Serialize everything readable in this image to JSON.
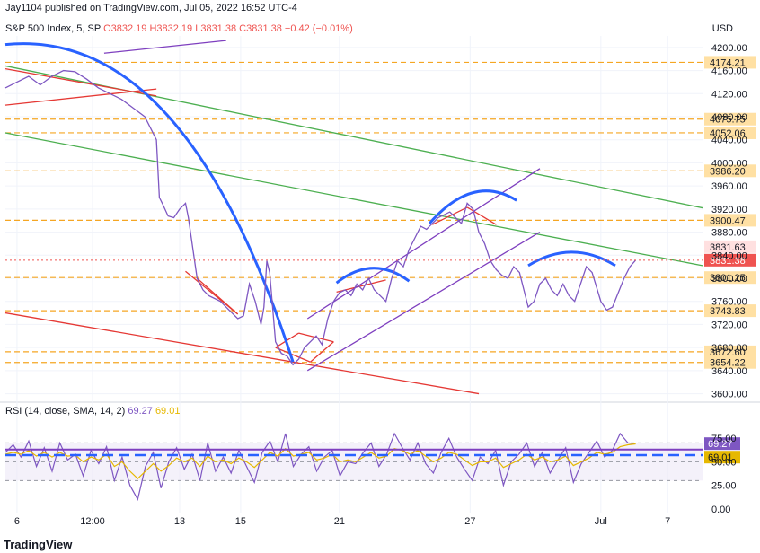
{
  "header": {
    "publisher": "Jay1104 published on TradingView.com, Jul 05, 2022 16:52 UTC-4",
    "symbol": "S&P 500 Index, 5, SP",
    "ohlc": "O3832.19  H3832.19  L3831.38  C3831.38  −0.42 (−0.01%)",
    "currency": "USD"
  },
  "brand": "TradingView",
  "colors": {
    "price_line": "#7e57c2",
    "level_line": "#f5a623",
    "green_channel": "#4caf50",
    "red_channel": "#e53935",
    "purple_channel": "#7e3fbf",
    "blue_curve": "#2962ff",
    "rsi_line": "#7e57c2",
    "rsi_sma": "#e6b800",
    "current_price_bg": "#ef5350"
  },
  "chart_data": [
    {
      "type": "line",
      "title": "S&P 500 Index, 5, SP",
      "ylabel": "USD",
      "ylim": [
        3590,
        4220
      ],
      "y_ticks": [
        3600,
        3640,
        3680,
        3720,
        3760,
        3800,
        3840,
        3880,
        3920,
        3960,
        4000,
        4040,
        4080,
        4120,
        4160,
        4200
      ],
      "x_tick_labels": [
        "6",
        "12:00",
        "13",
        "15",
        "21",
        "27",
        "Jul",
        "7"
      ],
      "grid": true,
      "horizontal_levels": [
        4174.21,
        4075.75,
        4052.06,
        3986.2,
        3900.47,
        3801.25,
        3743.83,
        3672.6,
        3654.22
      ],
      "level_labels": [
        "4174.21",
        "4075.75",
        "4052.06",
        "3986.20",
        "3900.47",
        "3801.25",
        "3743.83",
        "3672.60",
        "3654.22"
      ],
      "current_price": 3831.38,
      "current_price_label": "3831.38",
      "last_close_label": "3831.63",
      "price_path": [
        [
          0,
          4130
        ],
        [
          4,
          4140
        ],
        [
          8,
          4150
        ],
        [
          12,
          4135
        ],
        [
          16,
          4150
        ],
        [
          20,
          4160
        ],
        [
          24,
          4158
        ],
        [
          28,
          4145
        ],
        [
          32,
          4130
        ],
        [
          36,
          4120
        ],
        [
          40,
          4110
        ],
        [
          44,
          4095
        ],
        [
          48,
          4080
        ],
        [
          50,
          4060
        ],
        [
          52,
          4040
        ],
        [
          53,
          3940
        ],
        [
          54,
          3930
        ],
        [
          56,
          3908
        ],
        [
          58,
          3905
        ],
        [
          60,
          3920
        ],
        [
          62,
          3930
        ],
        [
          63,
          3905
        ],
        [
          66,
          3800
        ],
        [
          68,
          3780
        ],
        [
          70,
          3770
        ],
        [
          72,
          3765
        ],
        [
          74,
          3760
        ],
        [
          76,
          3750
        ],
        [
          78,
          3740
        ],
        [
          80,
          3730
        ],
        [
          82,
          3735
        ],
        [
          84,
          3790
        ],
        [
          86,
          3760
        ],
        [
          88,
          3720
        ],
        [
          89,
          3750
        ],
        [
          90,
          3830
        ],
        [
          91,
          3810
        ],
        [
          93,
          3690
        ],
        [
          95,
          3670
        ],
        [
          97,
          3665
        ],
        [
          99,
          3650
        ],
        [
          101,
          3660
        ],
        [
          103,
          3680
        ],
        [
          105,
          3690
        ],
        [
          107,
          3700
        ],
        [
          109,
          3685
        ],
        [
          111,
          3730
        ],
        [
          113,
          3760
        ],
        [
          115,
          3775
        ],
        [
          117,
          3780
        ],
        [
          119,
          3770
        ],
        [
          121,
          3790
        ],
        [
          123,
          3780
        ],
        [
          125,
          3800
        ],
        [
          127,
          3780
        ],
        [
          129,
          3770
        ],
        [
          131,
          3760
        ],
        [
          133,
          3800
        ],
        [
          135,
          3830
        ],
        [
          137,
          3820
        ],
        [
          139,
          3850
        ],
        [
          141,
          3870
        ],
        [
          143,
          3890
        ],
        [
          145,
          3885
        ],
        [
          147,
          3895
        ],
        [
          149,
          3905
        ],
        [
          151,
          3910
        ],
        [
          153,
          3915
        ],
        [
          155,
          3905
        ],
        [
          157,
          3895
        ],
        [
          159,
          3930
        ],
        [
          161,
          3920
        ],
        [
          163,
          3880
        ],
        [
          165,
          3860
        ],
        [
          167,
          3830
        ],
        [
          169,
          3815
        ],
        [
          171,
          3805
        ],
        [
          173,
          3800
        ],
        [
          175,
          3820
        ],
        [
          177,
          3810
        ],
        [
          180,
          3750
        ],
        [
          182,
          3760
        ],
        [
          184,
          3790
        ],
        [
          186,
          3800
        ],
        [
          188,
          3780
        ],
        [
          190,
          3770
        ],
        [
          192,
          3790
        ],
        [
          194,
          3770
        ],
        [
          196,
          3760
        ],
        [
          198,
          3790
        ],
        [
          200,
          3820
        ],
        [
          202,
          3810
        ],
        [
          205,
          3760
        ],
        [
          207,
          3745
        ],
        [
          209,
          3750
        ],
        [
          211,
          3775
        ],
        [
          213,
          3800
        ],
        [
          215,
          3820
        ],
        [
          217,
          3831.38
        ]
      ],
      "trendlines": [
        {
          "color": "green",
          "from": [
            0,
            4168
          ],
          "to": [
            240,
            3922
          ]
        },
        {
          "color": "green",
          "from": [
            0,
            4052
          ],
          "to": [
            240,
            3822
          ]
        },
        {
          "color": "red",
          "from": [
            0,
            4163
          ],
          "to": [
            52,
            4116
          ]
        },
        {
          "color": "red",
          "from": [
            0,
            4100
          ],
          "to": [
            52,
            4128
          ]
        },
        {
          "color": "red",
          "from": [
            0,
            3740
          ],
          "to": [
            163,
            3600
          ]
        },
        {
          "color": "red",
          "from": [
            62,
            3812
          ],
          "to": [
            80,
            3738
          ]
        },
        {
          "color": "red",
          "from": [
            66,
            3800
          ],
          "to": [
            80,
            3738
          ]
        },
        {
          "color": "red",
          "from": [
            93,
            3680
          ],
          "to": [
            101,
            3705
          ]
        },
        {
          "color": "red",
          "from": [
            101,
            3705
          ],
          "to": [
            113,
            3690
          ]
        },
        {
          "color": "red",
          "from": [
            113,
            3690
          ],
          "to": [
            105,
            3655
          ]
        },
        {
          "color": "red",
          "from": [
            93,
            3680
          ],
          "to": [
            105,
            3655
          ]
        },
        {
          "color": "red",
          "from": [
            114,
            3776
          ],
          "to": [
            131,
            3797
          ]
        },
        {
          "color": "red",
          "from": [
            147,
            3893
          ],
          "to": [
            159,
            3923
          ]
        },
        {
          "color": "red",
          "from": [
            159,
            3923
          ],
          "to": [
            169,
            3893
          ]
        },
        {
          "color": "purple",
          "from": [
            104,
            3730
          ],
          "to": [
            184,
            3990
          ]
        },
        {
          "color": "purple",
          "from": [
            104,
            3640
          ],
          "to": [
            184,
            3880
          ]
        },
        {
          "color": "purple",
          "from": [
            34,
            4190
          ],
          "to": [
            76,
            4212
          ]
        }
      ],
      "arcs": [
        {
          "from": [
            0,
            4205
          ],
          "to": [
            99,
            3655
          ]
        },
        {
          "from": [
            114,
            3792
          ],
          "to": [
            139,
            3795
          ]
        },
        {
          "from": [
            146,
            3895
          ],
          "to": [
            176,
            3935
          ]
        },
        {
          "from": [
            180,
            3822
          ],
          "to": [
            210,
            3822
          ]
        }
      ]
    },
    {
      "type": "line",
      "title": "RSI (14, close, SMA, 14, 2)",
      "ylim": [
        -5,
        100
      ],
      "y_ticks": [
        0,
        25,
        50,
        75
      ],
      "y_tick_labels": [
        "0.00",
        "25.00",
        "50.00",
        "75.00"
      ],
      "band": [
        30,
        70
      ],
      "rsi_value_label": "69.27",
      "sma_value_label": "69.01",
      "legend_values": [
        "69.27",
        "69.01"
      ],
      "series": [
        {
          "name": "RSI",
          "values": [
            60,
            68,
            55,
            72,
            45,
            65,
            40,
            70,
            52,
            58,
            35,
            62,
            48,
            66,
            30,
            55,
            25,
            10,
            45,
            60,
            22,
            50,
            65,
            42,
            58,
            30,
            70,
            40,
            55,
            38,
            62,
            45,
            28,
            60,
            72,
            50,
            80,
            45,
            58,
            66,
            40,
            55,
            62,
            35,
            50,
            48,
            60,
            70,
            45,
            58,
            80,
            65,
            52,
            70,
            48,
            38,
            60,
            75,
            55,
            42,
            30,
            55,
            48,
            62,
            25,
            50,
            58,
            70,
            45,
            60,
            38,
            52,
            65,
            28,
            48,
            60,
            72,
            55,
            62,
            80,
            70,
            69.27
          ]
        },
        {
          "name": "SMA",
          "values": [
            58,
            60,
            58,
            62,
            56,
            60,
            55,
            60,
            56,
            57,
            50,
            55,
            52,
            58,
            45,
            50,
            40,
            32,
            40,
            48,
            40,
            46,
            54,
            50,
            54,
            45,
            56,
            50,
            52,
            48,
            54,
            50,
            44,
            52,
            60,
            56,
            64,
            56,
            58,
            60,
            52,
            54,
            58,
            50,
            52,
            50,
            55,
            60,
            54,
            56,
            64,
            62,
            58,
            62,
            56,
            50,
            54,
            60,
            58,
            52,
            46,
            50,
            50,
            54,
            44,
            48,
            52,
            58,
            52,
            55,
            50,
            52,
            56,
            46,
            50,
            54,
            60,
            58,
            60,
            66,
            68,
            69.01
          ]
        },
        {
          "name": "level_upper",
          "values": [
            63
          ]
        },
        {
          "name": "level_lower",
          "values": [
            57
          ]
        }
      ]
    }
  ]
}
